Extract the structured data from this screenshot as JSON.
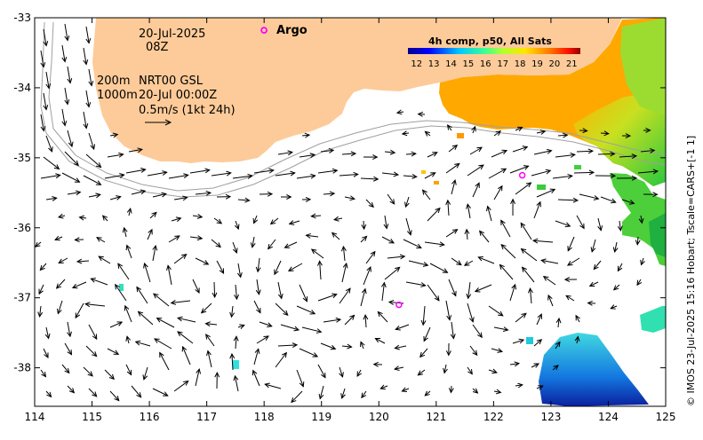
{
  "map": {
    "date_line1": "20-Jul-2025",
    "date_line2": "08Z",
    "depth_line1": "200m",
    "depth_line2": "1000m",
    "model_line1": "NRT00 GSL",
    "model_line2": "20-Jul 00:00Z",
    "scale_label": "0.5m/s (1kt 24h)",
    "argo_label": "Argo",
    "sst_label": "4h comp, p50, All Sats",
    "credit": "© IMOS 23-Jul-2025 15:16 Hobart; Tscale=CARS+[-1 1]"
  },
  "axes": {
    "x_ticks": [
      "114",
      "115",
      "116",
      "117",
      "118",
      "119",
      "120",
      "121",
      "122",
      "123",
      "124",
      "125"
    ],
    "y_ticks": [
      "-33",
      "-34",
      "-35",
      "-36",
      "-37",
      "-38"
    ],
    "x_range": [
      114,
      125
    ],
    "y_range": [
      -38.55,
      -33
    ]
  },
  "colorbar": {
    "ticks": [
      "12",
      "13",
      "14",
      "15",
      "16",
      "17",
      "18",
      "19",
      "20",
      "21"
    ],
    "range": [
      11.5,
      21.5
    ]
  },
  "argo_floats": [
    {
      "lon": 118.0,
      "lat": -33.18
    },
    {
      "lon": 122.5,
      "lat": -35.25
    },
    {
      "lon": 120.35,
      "lat": -37.1
    }
  ],
  "colors": {
    "land": "#FDCB99",
    "ocean": "#FFFFFF",
    "argo": "#FF00FF",
    "isobath": "#A0A0A0",
    "arrow": "#000000"
  }
}
